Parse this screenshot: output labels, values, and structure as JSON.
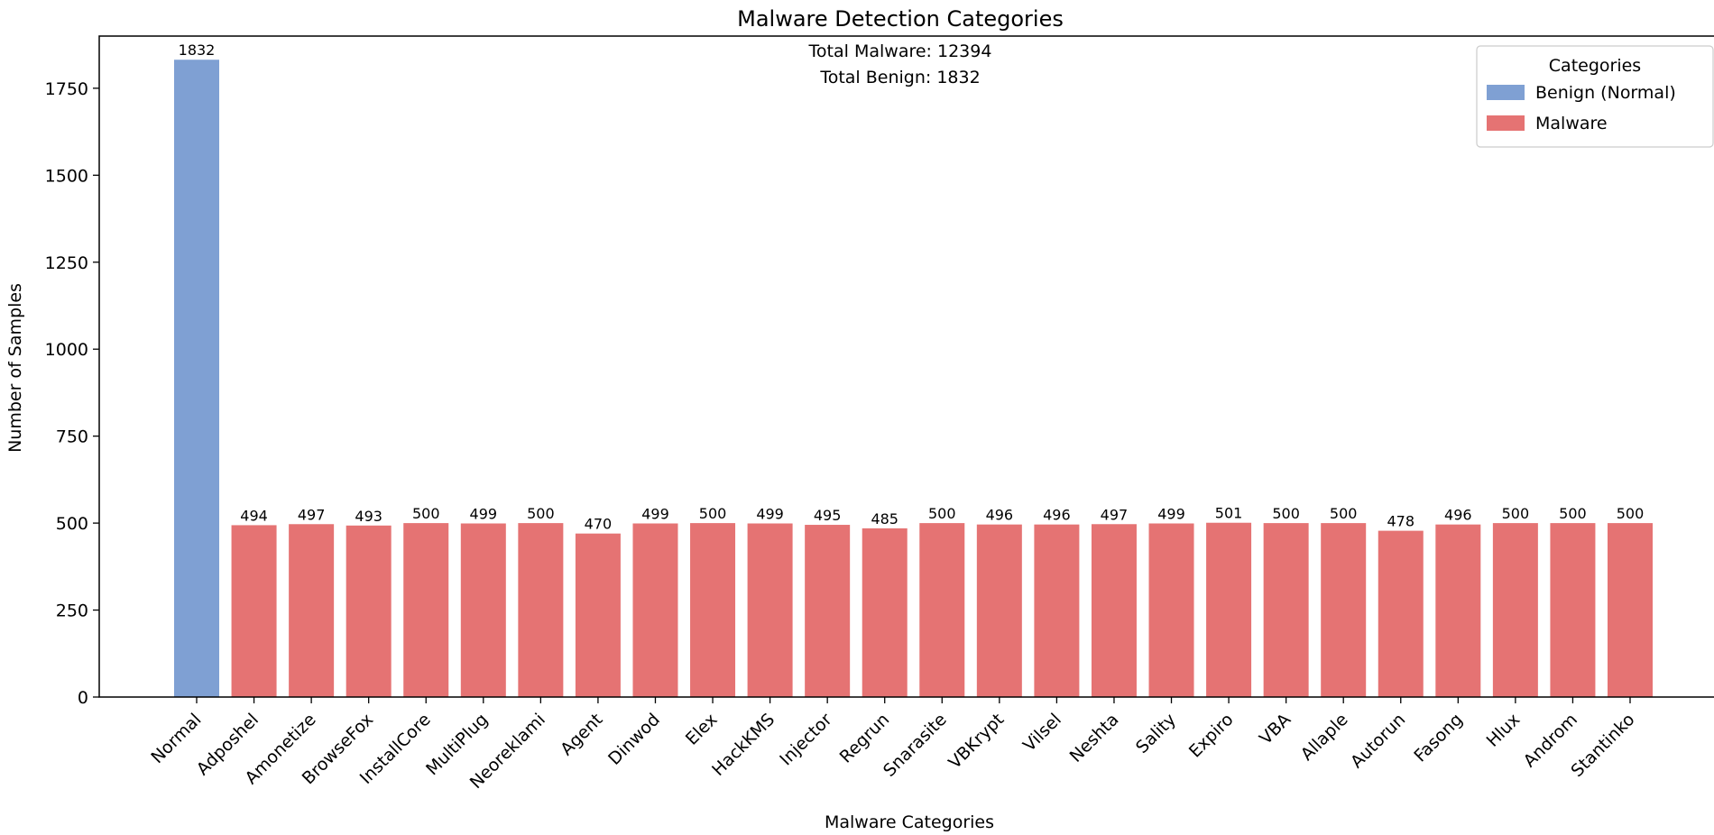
{
  "chart_data": {
    "type": "bar",
    "title": "Malware Detection Categories",
    "xlabel": "Malware Categories",
    "ylabel": "Number of Samples",
    "ylim": [
      0,
      1900
    ],
    "yticks": [
      0,
      250,
      500,
      750,
      1000,
      1250,
      1500,
      1750
    ],
    "grid": false,
    "legend": {
      "title": "Categories",
      "placement": "top-right",
      "entries": [
        {
          "label": "Benign (Normal)",
          "color": "#7fa0d3"
        },
        {
          "label": "Malware",
          "color": "#e57373"
        }
      ]
    },
    "annotation": {
      "lines": [
        "Total Malware: 12394",
        "Total Benign: 1832"
      ]
    },
    "categories": [
      "Normal",
      "Adposhel",
      "Amonetize",
      "BrowseFox",
      "InstallCore",
      "MultiPlug",
      "Neoreklami",
      "Agent",
      "Dinwod",
      "Elex",
      "HackKMS",
      "Injector",
      "Regrun",
      "Snarasite",
      "VBKrypt",
      "Vilsel",
      "Neshta",
      "Sality",
      "Expiro",
      "VBA",
      "Allaple",
      "Autorun",
      "Fasong",
      "Hlux",
      "Androm",
      "Stantinko"
    ],
    "values": [
      1832,
      494,
      497,
      493,
      500,
      499,
      500,
      470,
      499,
      500,
      499,
      495,
      485,
      500,
      496,
      496,
      497,
      499,
      501,
      500,
      500,
      478,
      496,
      500,
      500,
      500
    ],
    "groups": [
      "Benign (Normal)",
      "Malware",
      "Malware",
      "Malware",
      "Malware",
      "Malware",
      "Malware",
      "Malware",
      "Malware",
      "Malware",
      "Malware",
      "Malware",
      "Malware",
      "Malware",
      "Malware",
      "Malware",
      "Malware",
      "Malware",
      "Malware",
      "Malware",
      "Malware",
      "Malware",
      "Malware",
      "Malware",
      "Malware",
      "Malware"
    ]
  }
}
